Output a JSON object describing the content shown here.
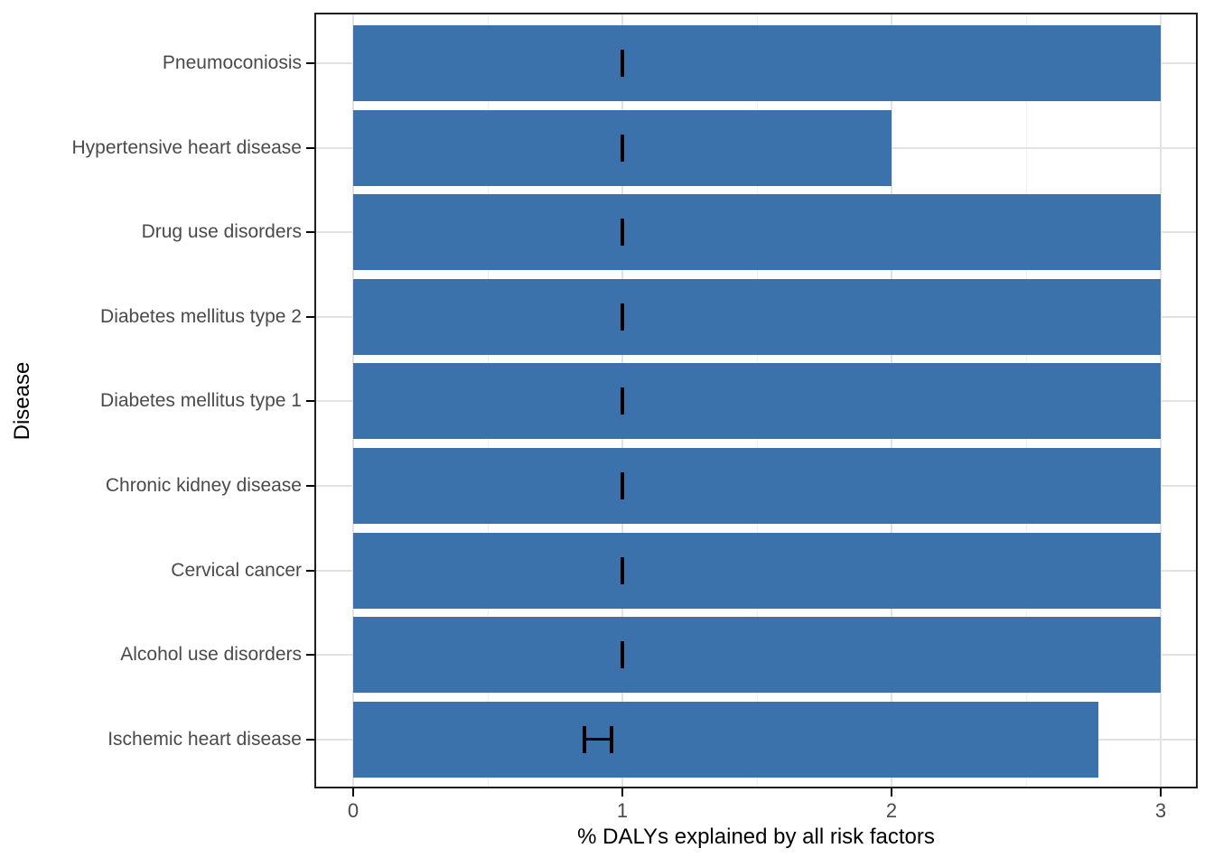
{
  "chart_data": {
    "type": "bar",
    "orientation": "horizontal",
    "title": "",
    "xlabel": "% DALYs explained by all risk factors",
    "ylabel": "Disease",
    "xlim": [
      0,
      3
    ],
    "x_major_ticks": [
      0,
      1,
      2,
      3
    ],
    "x_tick_labels": [
      "0",
      "1",
      "2",
      "3"
    ],
    "x_minor_ticks": [
      0.5,
      1.5,
      2.5
    ],
    "grid": {
      "vertical": "major and minor",
      "horizontal": "major at category centers"
    },
    "legend_position": "none",
    "categories": [
      "Pneumoconiosis",
      "Hypertensive heart disease",
      "Drug use disorders",
      "Diabetes mellitus type 2",
      "Diabetes mellitus type 1",
      "Chronic kidney disease",
      "Cervical cancer",
      "Alcohol use disorders",
      "Ischemic heart disease"
    ],
    "series": [
      {
        "name": "% DALYs explained by all risk factors",
        "values": [
          3,
          2,
          3,
          3,
          3,
          3,
          3,
          3,
          2.77
        ],
        "error_bars": [
          {
            "low": 1.0,
            "high": 1.0
          },
          {
            "low": 1.0,
            "high": 1.0
          },
          {
            "low": 1.0,
            "high": 1.0
          },
          {
            "low": 1.0,
            "high": 1.0
          },
          {
            "low": 1.0,
            "high": 1.0
          },
          {
            "low": 1.0,
            "high": 1.0
          },
          {
            "low": 1.0,
            "high": 1.0
          },
          {
            "low": 1.0,
            "high": 1.0
          },
          {
            "low": 0.86,
            "high": 0.96
          }
        ]
      }
    ],
    "colors": {
      "bar": "#3B72AB",
      "grid_major": "#E2E2E2",
      "grid_minor": "#EFEFEF",
      "panel_border": "#1F1F1F",
      "axis_tick": "#000000",
      "tick_label": "#4A4A4A",
      "axis_title": "#000000",
      "background": "#FFFFFF"
    }
  }
}
